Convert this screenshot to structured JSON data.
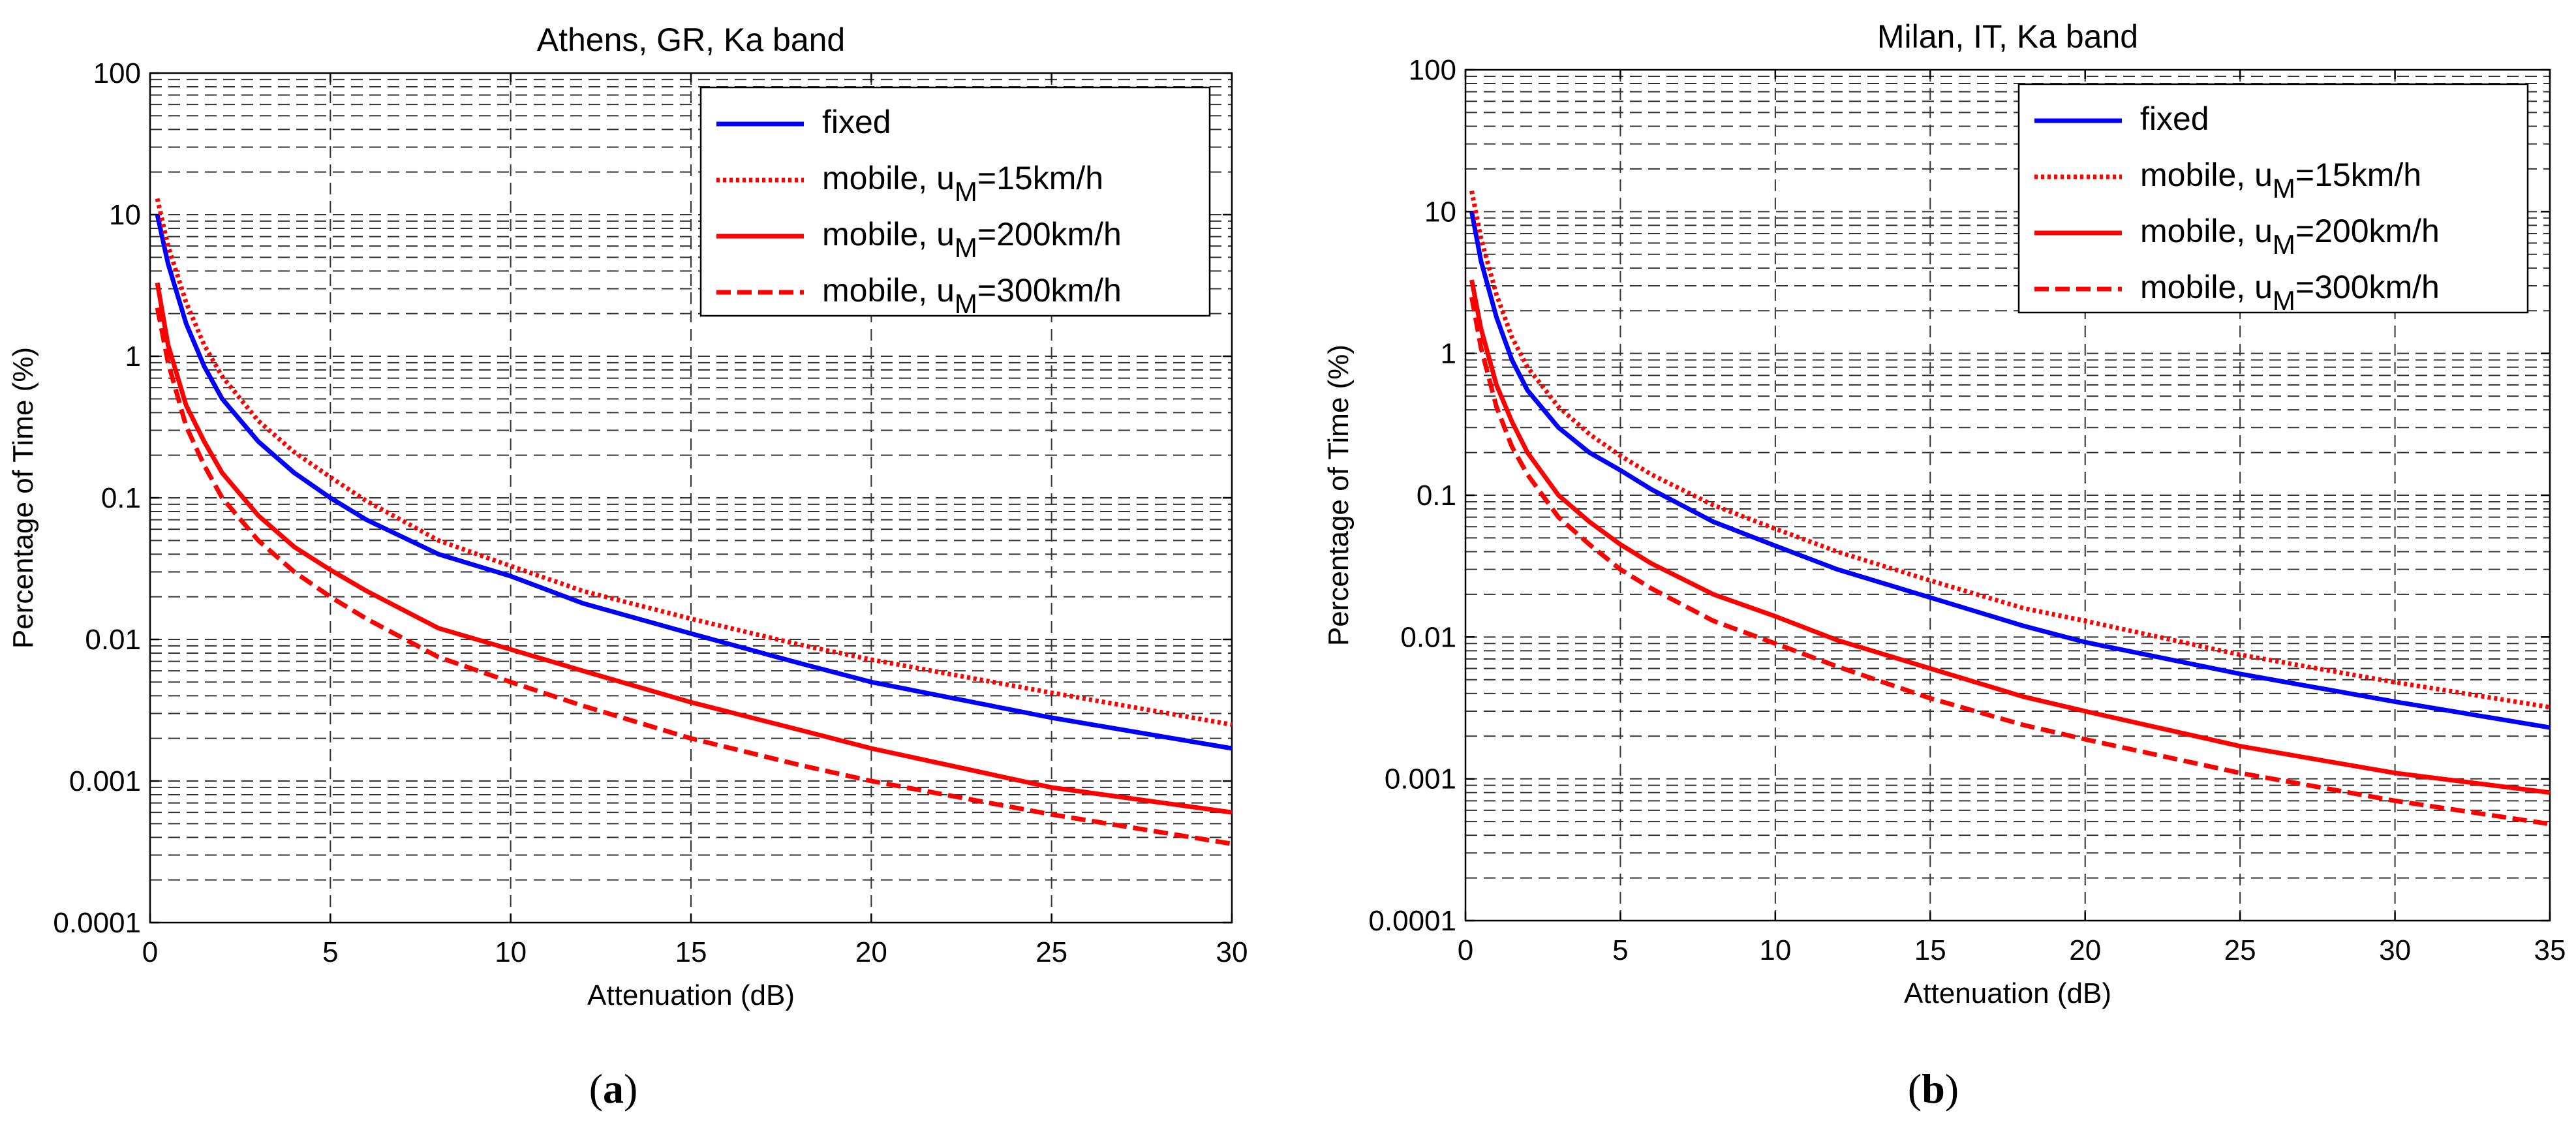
{
  "figure": {
    "panels": [
      {
        "id": "a",
        "caption_open": "(",
        "caption_letter": "a",
        "caption_close": ")"
      },
      {
        "id": "b",
        "caption_open": "(",
        "caption_letter": "b",
        "caption_close": ")"
      }
    ]
  },
  "chart_data": [
    {
      "type": "line",
      "title": "Athens, GR, Ka band",
      "xlabel": "Attenuation (dB)",
      "ylabel": "Percentage of Time (%)",
      "yscale": "log",
      "xlim": [
        0,
        30
      ],
      "ylim": [
        0.0001,
        100
      ],
      "xticks": [
        0,
        5,
        10,
        15,
        20,
        25,
        30
      ],
      "xtick_labels": [
        "0",
        "5",
        "10",
        "15",
        "20",
        "25",
        "30"
      ],
      "yticks": [
        0.0001,
        0.001,
        0.01,
        0.1,
        1,
        10,
        100
      ],
      "ytick_labels": [
        "0.0001",
        "0.001",
        "0.01",
        "0.1",
        "1",
        "10",
        "100"
      ],
      "grid": true,
      "legend_position": "top-right",
      "series": [
        {
          "name": "fixed",
          "legend_main": "fixed",
          "legend_sub": "",
          "legend_tail": "",
          "color": "#0000ff",
          "style": "solid",
          "x": [
            0.2,
            0.5,
            1,
            1.5,
            2,
            3,
            4,
            5,
            6,
            8,
            10,
            12,
            15,
            18,
            20,
            25,
            30
          ],
          "y": [
            10,
            4.5,
            1.7,
            0.85,
            0.5,
            0.25,
            0.15,
            0.1,
            0.07,
            0.04,
            0.028,
            0.018,
            0.011,
            0.0068,
            0.005,
            0.0028,
            0.0017
          ]
        },
        {
          "name": "mobile, uM=15km/h",
          "legend_main": "mobile, u",
          "legend_sub": "M",
          "legend_tail": "=15km/h",
          "color": "#ff0000",
          "style": "dotted",
          "x": [
            0.2,
            0.5,
            1,
            1.5,
            2,
            3,
            4,
            5,
            6,
            8,
            10,
            12,
            15,
            18,
            20,
            25,
            30
          ],
          "y": [
            13,
            6,
            2.4,
            1.2,
            0.72,
            0.35,
            0.21,
            0.14,
            0.095,
            0.05,
            0.033,
            0.022,
            0.014,
            0.0092,
            0.0072,
            0.0042,
            0.0025
          ]
        },
        {
          "name": "mobile, uM=200km/h",
          "legend_main": "mobile, u",
          "legend_sub": "M",
          "legend_tail": "=200km/h",
          "color": "#ff0000",
          "style": "solid",
          "x": [
            0.2,
            0.5,
            1,
            1.5,
            2,
            3,
            4,
            5,
            6,
            8,
            10,
            12,
            15,
            18,
            20,
            25,
            30
          ],
          "y": [
            3.3,
            1.2,
            0.45,
            0.25,
            0.15,
            0.075,
            0.045,
            0.031,
            0.022,
            0.012,
            0.0085,
            0.006,
            0.0036,
            0.0023,
            0.0017,
            0.0009,
            0.0006
          ]
        },
        {
          "name": "mobile, uM=300km/h",
          "legend_main": "mobile, u",
          "legend_sub": "M",
          "legend_tail": "=300km/h",
          "color": "#ff0000",
          "style": "dashed",
          "x": [
            0.2,
            0.5,
            1,
            1.5,
            2,
            3,
            4,
            5,
            6,
            8,
            10,
            12,
            15,
            18,
            20,
            25,
            30
          ],
          "y": [
            2.2,
            0.9,
            0.32,
            0.17,
            0.1,
            0.05,
            0.03,
            0.02,
            0.014,
            0.0075,
            0.005,
            0.0034,
            0.002,
            0.0013,
            0.001,
            0.00058,
            0.00036
          ]
        }
      ]
    },
    {
      "type": "line",
      "title": "Milan, IT, Ka band",
      "xlabel": "Attenuation (dB)",
      "ylabel": "Percentage of Time (%)",
      "yscale": "log",
      "xlim": [
        0,
        35
      ],
      "ylim": [
        0.0001,
        100
      ],
      "xticks": [
        0,
        5,
        10,
        15,
        20,
        25,
        30,
        35
      ],
      "xtick_labels": [
        "0",
        "5",
        "10",
        "15",
        "20",
        "25",
        "30",
        "35"
      ],
      "yticks": [
        0.0001,
        0.001,
        0.01,
        0.1,
        1,
        10,
        100
      ],
      "ytick_labels": [
        "0.0001",
        "0.001",
        "0.01",
        "0.1",
        "1",
        "10",
        "100"
      ],
      "grid": true,
      "legend_position": "top-right",
      "series": [
        {
          "name": "fixed",
          "legend_main": "fixed",
          "legend_sub": "",
          "legend_tail": "",
          "color": "#0000ff",
          "style": "solid",
          "x": [
            0.2,
            0.5,
            1,
            1.5,
            2,
            3,
            4,
            5,
            6,
            8,
            10,
            12,
            15,
            18,
            20,
            25,
            30,
            35
          ],
          "y": [
            10,
            4.5,
            1.8,
            0.9,
            0.55,
            0.3,
            0.2,
            0.15,
            0.11,
            0.065,
            0.044,
            0.03,
            0.019,
            0.012,
            0.0092,
            0.0055,
            0.0035,
            0.0023
          ]
        },
        {
          "name": "mobile, uM=15km/h",
          "legend_main": "mobile, u",
          "legend_sub": "M",
          "legend_tail": "=15km/h",
          "color": "#ff0000",
          "style": "dotted",
          "x": [
            0.2,
            0.5,
            1,
            1.5,
            2,
            3,
            4,
            5,
            6,
            8,
            10,
            12,
            15,
            18,
            20,
            25,
            30,
            35
          ],
          "y": [
            14,
            6.5,
            2.6,
            1.3,
            0.8,
            0.42,
            0.27,
            0.19,
            0.14,
            0.085,
            0.058,
            0.04,
            0.025,
            0.016,
            0.013,
            0.0075,
            0.0048,
            0.0032
          ]
        },
        {
          "name": "mobile, uM=200km/h",
          "legend_main": "mobile, u",
          "legend_sub": "M",
          "legend_tail": "=200km/h",
          "color": "#ff0000",
          "style": "solid",
          "x": [
            0.2,
            0.5,
            1,
            1.5,
            2,
            3,
            4,
            5,
            6,
            8,
            10,
            12,
            15,
            18,
            20,
            25,
            30,
            35
          ],
          "y": [
            3.3,
            1.5,
            0.6,
            0.33,
            0.2,
            0.1,
            0.065,
            0.045,
            0.033,
            0.02,
            0.014,
            0.0095,
            0.006,
            0.0038,
            0.003,
            0.0017,
            0.0011,
            0.0008
          ]
        },
        {
          "name": "mobile, uM=300km/h",
          "legend_main": "mobile, u",
          "legend_sub": "M",
          "legend_tail": "=300km/h",
          "color": "#ff0000",
          "style": "dashed",
          "x": [
            0.2,
            0.5,
            1,
            1.5,
            2,
            3,
            4,
            5,
            6,
            8,
            10,
            12,
            15,
            18,
            20,
            25,
            30,
            35
          ],
          "y": [
            2.5,
            1.1,
            0.42,
            0.22,
            0.14,
            0.07,
            0.045,
            0.03,
            0.022,
            0.013,
            0.009,
            0.0062,
            0.0037,
            0.0024,
            0.0019,
            0.0011,
            0.0007,
            0.00048
          ]
        }
      ]
    }
  ]
}
